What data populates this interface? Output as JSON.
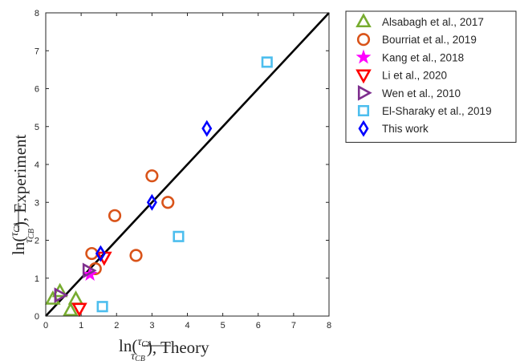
{
  "chart_data": {
    "type": "scatter",
    "xlabel": "ln(τCA/τCB), Theory",
    "ylabel": "ln(τCA/τCB), Experiment",
    "xlim": [
      0,
      8
    ],
    "ylim": [
      0,
      8
    ],
    "xticks": [
      "0",
      "1",
      "2",
      "3",
      "4",
      "5",
      "6",
      "7",
      "8"
    ],
    "yticks": [
      "0",
      "1",
      "2",
      "3",
      "4",
      "5",
      "6",
      "7",
      "8"
    ],
    "grid": false,
    "legend_position": "outside-right",
    "reference_line": {
      "x": [
        0,
        8
      ],
      "y": [
        0,
        8
      ],
      "color": "#000000"
    },
    "series": [
      {
        "name": "Alsabagh et al., 2017",
        "marker": "triangle-up",
        "color": "#77AC30",
        "x": [
          0.2,
          0.4,
          0.7,
          0.85
        ],
        "y": [
          0.45,
          0.65,
          0.15,
          0.45
        ]
      },
      {
        "name": "Bourriat et al., 2019",
        "marker": "circle",
        "color": "#D95319",
        "x": [
          1.3,
          1.4,
          1.95,
          2.55,
          3.0,
          3.45
        ],
        "y": [
          1.65,
          1.25,
          2.65,
          1.6,
          3.7,
          3.0
        ]
      },
      {
        "name": "Kang et al., 2018",
        "marker": "star",
        "color": "#FF00FF",
        "x": [
          1.25
        ],
        "y": [
          1.1
        ]
      },
      {
        "name": "Li et al., 2020",
        "marker": "triangle-down",
        "color": "#FF0000",
        "x": [
          0.95,
          1.65
        ],
        "y": [
          0.2,
          1.55
        ]
      },
      {
        "name": "Wen et al., 2010",
        "marker": "triangle-right",
        "color": "#7E2F8E",
        "x": [
          0.4,
          1.2
        ],
        "y": [
          0.55,
          1.2
        ]
      },
      {
        "name": "El-Sharaky et al., 2019",
        "marker": "square",
        "color": "#4DBEEE",
        "x": [
          1.6,
          3.75,
          6.25
        ],
        "y": [
          0.25,
          2.1,
          6.7
        ]
      },
      {
        "name": "This work",
        "marker": "diamond",
        "color": "#0000FF",
        "x": [
          1.55,
          3.0,
          4.55
        ],
        "y": [
          1.65,
          3.0,
          4.95
        ]
      }
    ]
  }
}
